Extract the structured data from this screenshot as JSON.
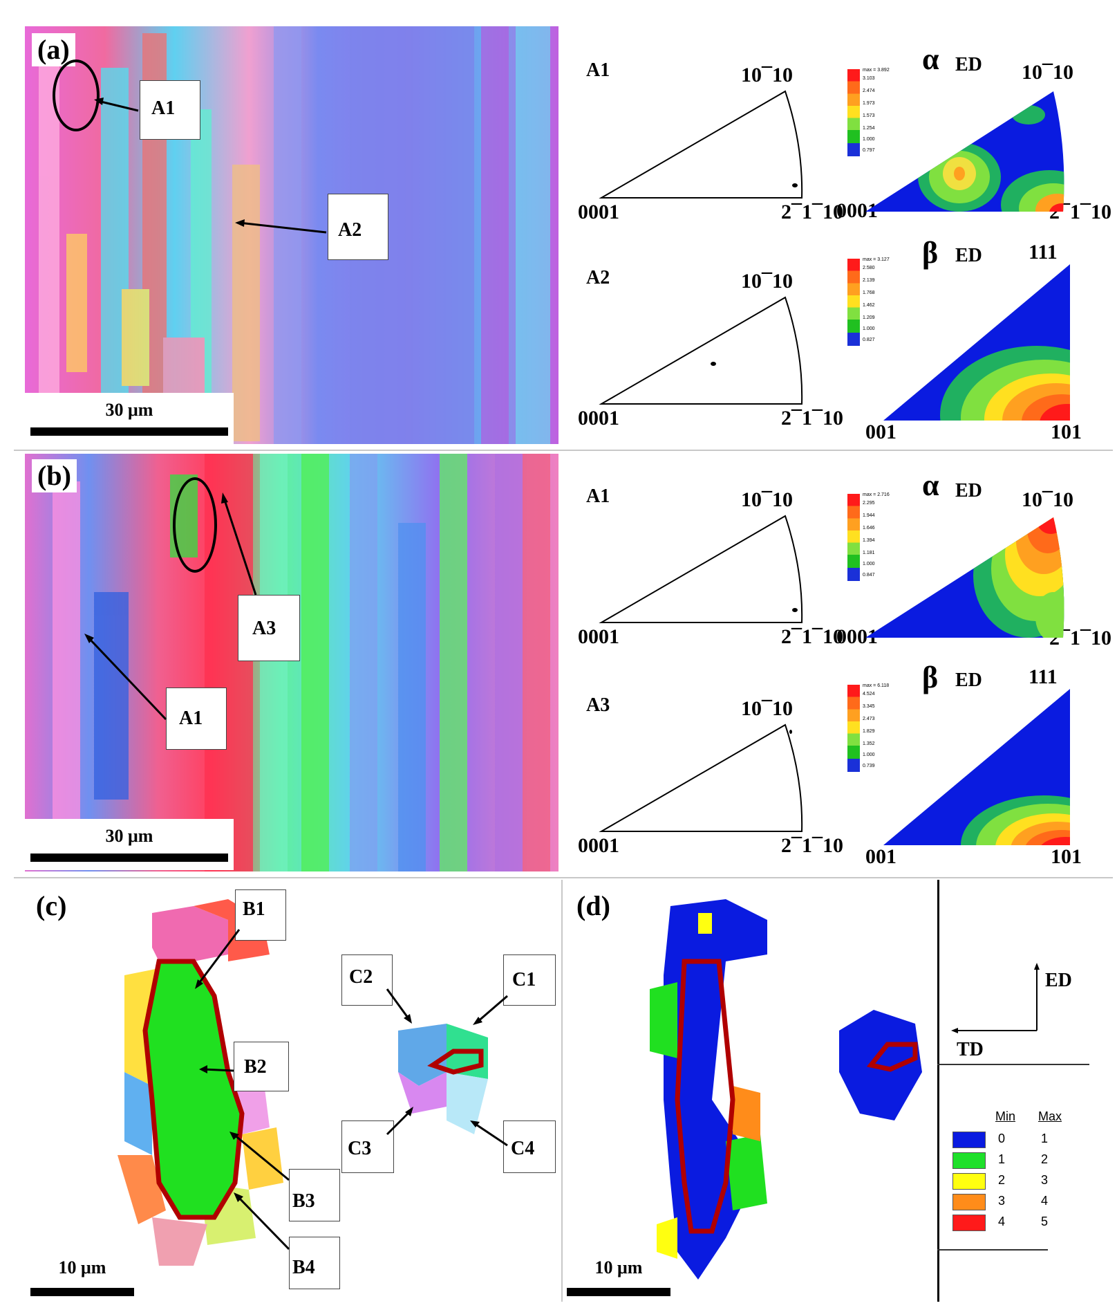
{
  "panels": {
    "a": {
      "label": "(a)",
      "scale": "30 μm",
      "callouts": [
        "A1",
        "A2"
      ]
    },
    "b": {
      "label": "(b)",
      "scale": "30 μm",
      "callouts": [
        "A3",
        "A1"
      ]
    },
    "c": {
      "label": "(c)",
      "scale": "10 μm",
      "callouts": [
        "B1",
        "B2",
        "B3",
        "B4",
        "C2",
        "C1",
        "C3",
        "C4"
      ]
    },
    "d": {
      "label": "(d)",
      "scale": "10 μm"
    }
  },
  "pole_figures": [
    {
      "name": "A1",
      "top": "10¯10",
      "left": "0001",
      "right": "2¯1¯10"
    },
    {
      "name": "A2",
      "top": "10¯10",
      "left": "0001",
      "right": "2¯1¯10"
    },
    {
      "name": "A1",
      "top": "10¯10",
      "left": "0001",
      "right": "2¯1¯10"
    },
    {
      "name": "A3",
      "top": "10¯10",
      "left": "0001",
      "right": "2¯1¯10"
    }
  ],
  "ipf_maps": [
    {
      "phase": "α",
      "dir": "ED",
      "top": "10¯10",
      "left": "0001",
      "right": "2¯1¯10",
      "max": "max = 3.892",
      "ticks": [
        "3.103",
        "2.474",
        "1.973",
        "1.573",
        "1.254",
        "1.000",
        "0.797"
      ]
    },
    {
      "phase": "β",
      "dir": "ED",
      "top": "111",
      "left": "001",
      "right": "101",
      "max": "max = 3.127",
      "ticks": [
        "2.580",
        "2.139",
        "1.768",
        "1.462",
        "1.209",
        "1.000",
        "0.827"
      ]
    },
    {
      "phase": "α",
      "dir": "ED",
      "top": "10¯10",
      "left": "0001",
      "right": "2¯1¯10",
      "max": "max = 2.716",
      "ticks": [
        "2.295",
        "1.944",
        "1.646",
        "1.394",
        "1.181",
        "1.000",
        "0.847"
      ]
    },
    {
      "phase": "β",
      "dir": "ED",
      "top": "111",
      "left": "001",
      "right": "101",
      "max": "max = 6.118",
      "ticks": [
        "4.524",
        "3.345",
        "2.473",
        "1.829",
        "1.352",
        "1.000",
        "0.739"
      ]
    }
  ],
  "axes": {
    "ed": "ED",
    "td": "TD"
  },
  "legend": {
    "min_header": "Min",
    "max_header": "Max",
    "rows": [
      {
        "color": "#0a1be0",
        "min": "0",
        "max": "1"
      },
      {
        "color": "#1ee02a",
        "min": "1",
        "max": "2"
      },
      {
        "color": "#ffff10",
        "min": "2",
        "max": "3"
      },
      {
        "color": "#ff8c1a",
        "min": "3",
        "max": "4"
      },
      {
        "color": "#ff1a1a",
        "min": "4",
        "max": "5"
      }
    ]
  },
  "colors": {
    "ipf_low": "#0a1be0",
    "ipf_high": "#ff1a1a",
    "boundary": "#c00000"
  }
}
